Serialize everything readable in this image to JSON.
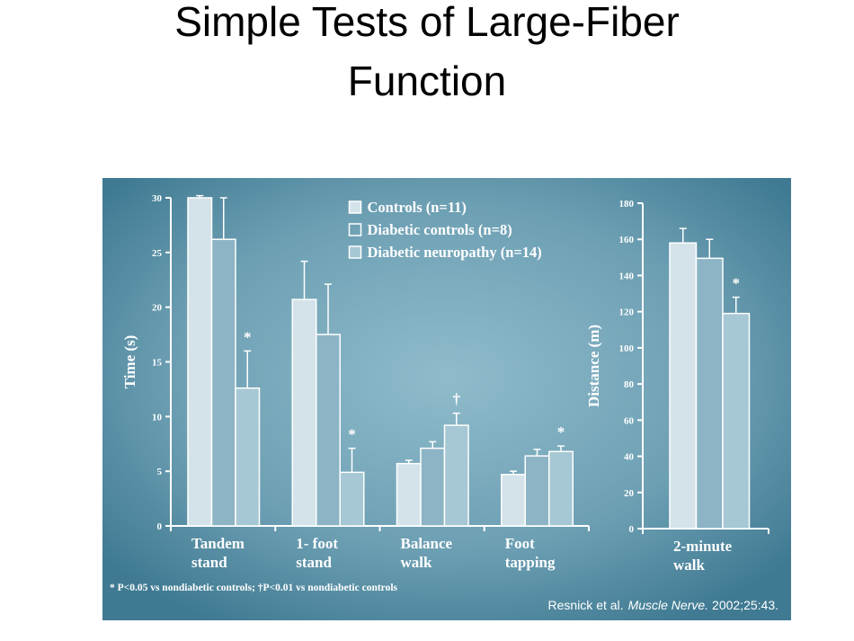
{
  "title": "Simple Tests of Large-Fiber Function",
  "chart_data": [
    {
      "type": "bar",
      "y_label": "Time (s)",
      "categories": [
        [
          "Tandem",
          "stand"
        ],
        [
          "1- foot",
          "stand"
        ],
        [
          "Balance",
          "walk"
        ],
        [
          "Foot",
          "tapping"
        ]
      ],
      "series": [
        {
          "name": "Controls (n=11)",
          "color": "#d3e3e9",
          "values": [
            30,
            20.7,
            5.7,
            4.7
          ],
          "errors": [
            0.2,
            3.5,
            0.3,
            0.3
          ],
          "markers": [
            null,
            null,
            null,
            null
          ]
        },
        {
          "name": "Diabetic controls (n=8)",
          "color": "#8db4c5",
          "values": [
            26.2,
            17.5,
            7.1,
            6.4
          ],
          "errors": [
            3.8,
            4.6,
            0.6,
            0.6
          ],
          "markers": [
            null,
            null,
            null,
            null
          ]
        },
        {
          "name": "Diabetic neuropathy (n=14)",
          "color": "#a6c7d4",
          "values": [
            12.6,
            4.9,
            9.2,
            6.8
          ],
          "errors": [
            3.4,
            2.2,
            1.1,
            0.5
          ],
          "markers": [
            "*",
            "*",
            "†",
            "*"
          ]
        }
      ],
      "ylim": [
        0,
        30
      ],
      "yticks": [
        0,
        5,
        10,
        15,
        20,
        25,
        30
      ],
      "legend": "upper center"
    },
    {
      "type": "bar",
      "y_label": "Distance (m)",
      "categories": [
        [
          "2-minute",
          "walk"
        ]
      ],
      "series": [
        {
          "name": "Controls (n=11)",
          "color": "#d3e3e9",
          "values": [
            158
          ],
          "errors": [
            8
          ],
          "markers": [
            null
          ]
        },
        {
          "name": "Diabetic controls (n=8)",
          "color": "#8db4c5",
          "values": [
            149.5
          ],
          "errors": [
            10.5
          ],
          "markers": [
            null
          ]
        },
        {
          "name": "Diabetic neuropathy (n=14)",
          "color": "#a6c7d4",
          "values": [
            119
          ],
          "errors": [
            9
          ],
          "markers": [
            "*"
          ]
        }
      ],
      "ylim": [
        0,
        180
      ],
      "yticks": [
        0,
        20,
        40,
        60,
        80,
        100,
        120,
        140,
        160,
        180
      ]
    }
  ],
  "footnote": "* P<0.05 vs nondiabetic controls; †P<0.01 vs nondiabetic controls",
  "source": {
    "authors": "Resnick et al.",
    "journal": "Muscle Nerve.",
    "citation": "2002;25:43."
  }
}
